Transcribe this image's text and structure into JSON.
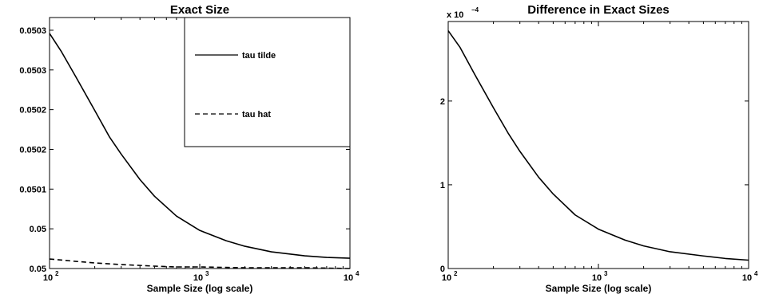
{
  "chart_data": [
    {
      "type": "line",
      "title": "Exact Size",
      "xlabel": "Sample Size (log scale)",
      "ylabel": "",
      "x_scale": "log",
      "xlim": [
        100,
        10000
      ],
      "ylim": [
        0.05,
        0.050316
      ],
      "x_ticks": [
        {
          "base": "10",
          "exp": "2",
          "value": 100
        },
        {
          "base": "10",
          "exp": "3",
          "value": 1000
        },
        {
          "base": "10",
          "exp": "4",
          "value": 10000
        }
      ],
      "y_ticks": [
        {
          "label": "0.05",
          "value": 0.05
        },
        {
          "label": "0.05",
          "value": 0.05005
        },
        {
          "label": "0.0501",
          "value": 0.0501
        },
        {
          "label": "0.0502",
          "value": 0.05015
        },
        {
          "label": "0.0502",
          "value": 0.0502
        },
        {
          "label": "0.0503",
          "value": 0.05025
        },
        {
          "label": "0.0503",
          "value": 0.0503
        }
      ],
      "legend_position": "top-right",
      "series": [
        {
          "name": "tau tilde",
          "style": "solid",
          "x": [
            100,
            120,
            150,
            200,
            250,
            300,
            400,
            500,
            700,
            1000,
            1500,
            2000,
            3000,
            5000,
            7000,
            10000
          ],
          "y": [
            0.050296,
            0.050273,
            0.050241,
            0.050199,
            0.050166,
            0.050144,
            0.050112,
            0.050091,
            0.050066,
            0.050048,
            0.050035,
            0.050028,
            0.050021,
            0.050016,
            0.050014,
            0.050013
          ]
        },
        {
          "name": "tau hat",
          "style": "dashed",
          "x": [
            100,
            150,
            200,
            300,
            500,
            700,
            1000,
            2000,
            5000,
            10000
          ],
          "y": [
            0.050012,
            0.050009,
            0.050007,
            0.050005,
            0.050003,
            0.050002,
            0.050002,
            0.050001,
            0.050001,
            0.05
          ]
        }
      ]
    },
    {
      "type": "line",
      "title": "Difference in Exact Sizes",
      "xlabel": "Sample Size (log scale)",
      "ylabel": "",
      "x_scale": "log",
      "xlim": [
        100,
        10000
      ],
      "ylim": [
        0,
        0.000295
      ],
      "scale_factor": {
        "base": "x 10",
        "exp": "−4"
      },
      "x_ticks": [
        {
          "base": "10",
          "exp": "2",
          "value": 100
        },
        {
          "base": "10",
          "exp": "3",
          "value": 1000
        },
        {
          "base": "10",
          "exp": "4",
          "value": 10000
        }
      ],
      "y_ticks": [
        {
          "label": "0",
          "value": 0
        },
        {
          "label": "1",
          "value": 0.0001
        },
        {
          "label": "2",
          "value": 0.0002
        }
      ],
      "series": [
        {
          "style": "solid",
          "x": [
            100,
            120,
            150,
            200,
            250,
            300,
            400,
            500,
            700,
            1000,
            1500,
            2000,
            3000,
            5000,
            7000,
            10000
          ],
          "y": [
            0.000284,
            0.000264,
            0.000232,
            0.000192,
            0.000162,
            0.00014,
            0.000109,
            8.9e-05,
            6.4e-05,
            4.7e-05,
            3.4e-05,
            2.7e-05,
            2e-05,
            1.5e-05,
            1.2e-05,
            1e-05
          ]
        }
      ]
    }
  ]
}
